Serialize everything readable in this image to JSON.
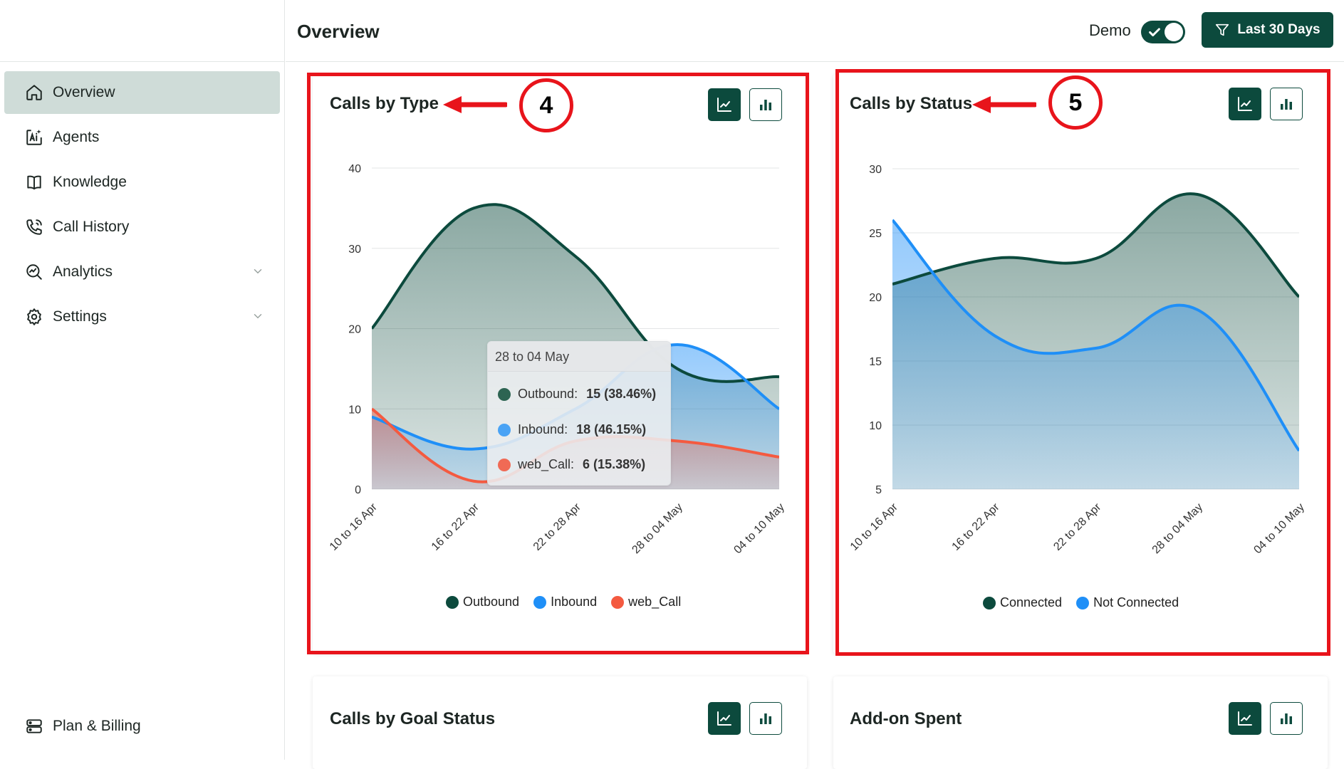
{
  "sidebar": {
    "items": [
      {
        "label": "Overview",
        "icon": "home-icon",
        "active": true
      },
      {
        "label": "Agents",
        "icon": "ai-agent-icon"
      },
      {
        "label": "Knowledge",
        "icon": "book-icon"
      },
      {
        "label": "Call History",
        "icon": "phone-icon"
      },
      {
        "label": "Analytics",
        "icon": "analytics-icon",
        "expandable": true
      },
      {
        "label": "Settings",
        "icon": "gear-icon",
        "expandable": true
      }
    ],
    "bottom_item": {
      "label": "Plan & Billing",
      "icon": "billing-icon"
    }
  },
  "header": {
    "title": "Overview",
    "demo_label": "Demo",
    "demo_on": true,
    "filter_label": "Last 30 Days"
  },
  "colors": {
    "accent": "#0c4a3d",
    "outbound": "#0c4a3d",
    "inbound": "#1f8ff7",
    "web_call": "#f45a40",
    "highlight": "#e8141b"
  },
  "cards": {
    "calls_by_type": {
      "title": "Calls by Type",
      "badge": "4"
    },
    "calls_by_status": {
      "title": "Calls by Status",
      "badge": "5"
    },
    "calls_by_goal_status": {
      "title": "Calls by Goal Status"
    },
    "addon_spent": {
      "title": "Add-on Spent"
    }
  },
  "tooltip": {
    "title": "28 to 04 May",
    "rows": [
      {
        "name": "Outbound:",
        "value": "15 (38.46%)",
        "color": "#2d6452"
      },
      {
        "name": "Inbound:",
        "value": "18 (46.15%)",
        "color": "#4aa3f5"
      },
      {
        "name": "web_Call:",
        "value": "6 (15.38%)",
        "color": "#f06a55"
      }
    ]
  },
  "chart_data": [
    {
      "type": "area",
      "title": "Calls by Type",
      "categories": [
        "10 to 16 Apr",
        "16 to 22 Apr",
        "22 to 28 Apr",
        "28 to 04 May",
        "04 to 10 May"
      ],
      "ylim": [
        0,
        40
      ],
      "yticks": [
        "0",
        "10",
        "20",
        "30",
        "40"
      ],
      "grid": true,
      "legend_position": "bottom",
      "series": [
        {
          "name": "Outbound",
          "values": [
            20,
            35,
            29,
            15,
            14
          ],
          "color": "#0c4a3d"
        },
        {
          "name": "Inbound",
          "values": [
            9,
            5,
            10,
            18,
            10
          ],
          "color": "#1f8ff7"
        },
        {
          "name": "web_Call",
          "values": [
            10,
            1,
            6,
            6,
            4
          ],
          "color": "#f45a40"
        }
      ]
    },
    {
      "type": "area",
      "title": "Calls by Status",
      "categories": [
        "10 to 16 Apr",
        "16 to 22 Apr",
        "22 to 28 Apr",
        "28 to 04 May",
        "04 to 10 May"
      ],
      "ylim": [
        5,
        30
      ],
      "yticks": [
        "5",
        "10",
        "15",
        "20",
        "25",
        "30"
      ],
      "grid": true,
      "legend_position": "bottom",
      "series": [
        {
          "name": "Connected",
          "values": [
            21,
            23,
            23,
            28,
            20
          ],
          "color": "#0c4a3d"
        },
        {
          "name": "Not Connected",
          "values": [
            26,
            17,
            16,
            19,
            8
          ],
          "color": "#1f8ff7"
        }
      ]
    }
  ]
}
